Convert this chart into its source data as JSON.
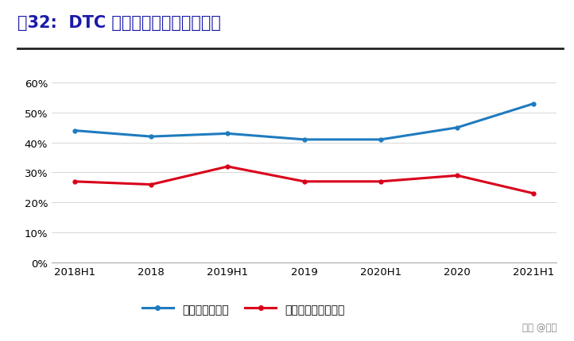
{
  "title": "图32:  DTC 大幅提升安踏大货毛利率",
  "x_labels": [
    "2018H1",
    "2018",
    "2019H1",
    "2019",
    "2020H1",
    "2020",
    "2021H1"
  ],
  "gross_margin": [
    0.44,
    0.42,
    0.43,
    0.41,
    0.41,
    0.45,
    0.53
  ],
  "net_margin": [
    0.27,
    0.26,
    0.32,
    0.27,
    0.27,
    0.29,
    0.23
  ],
  "gross_color": "#1f7bbf",
  "net_color": "#d9001b",
  "ylim": [
    0,
    0.65
  ],
  "yticks": [
    0,
    0.1,
    0.2,
    0.3,
    0.4,
    0.5,
    0.6
  ],
  "legend_gross": "安踏品牌毛利率",
  "legend_net": "安踏品牌经营净利率",
  "bg_color": "#ffffff",
  "watermark": "头条 @管是",
  "title_color": "#1a1aaa",
  "line_color_sep": "#222222",
  "line_width": 2.2
}
